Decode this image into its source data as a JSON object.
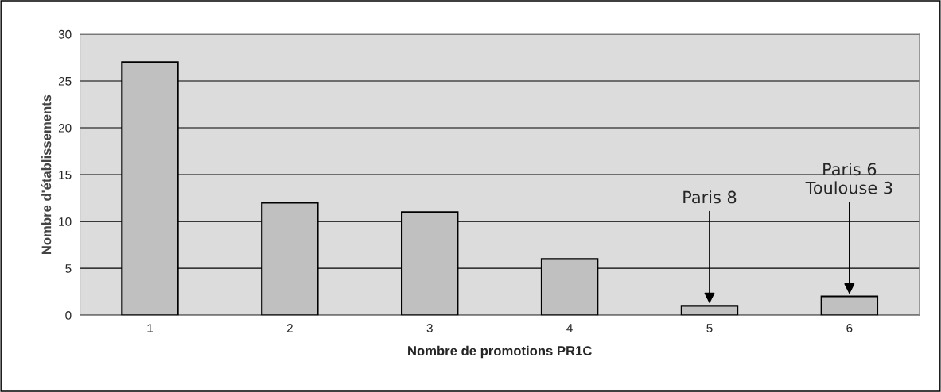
{
  "chart_data": {
    "type": "bar",
    "xlabel": "Nombre de promotions PR1C",
    "ylabel": "Nombre d'établissements",
    "categories": [
      "1",
      "2",
      "3",
      "4",
      "5",
      "6"
    ],
    "values": [
      27,
      12,
      11,
      6,
      1,
      2
    ],
    "color": "#c0c0c0",
    "ylim": [
      0,
      30
    ],
    "yticks": [
      0,
      5,
      10,
      15,
      20,
      25,
      30
    ],
    "grid": "y",
    "annotations": [
      {
        "text": "Paris 8",
        "x": "5",
        "y": 1
      },
      {
        "text": "Paris 6\nToulouse 3",
        "x": "6",
        "y": 2
      }
    ]
  }
}
